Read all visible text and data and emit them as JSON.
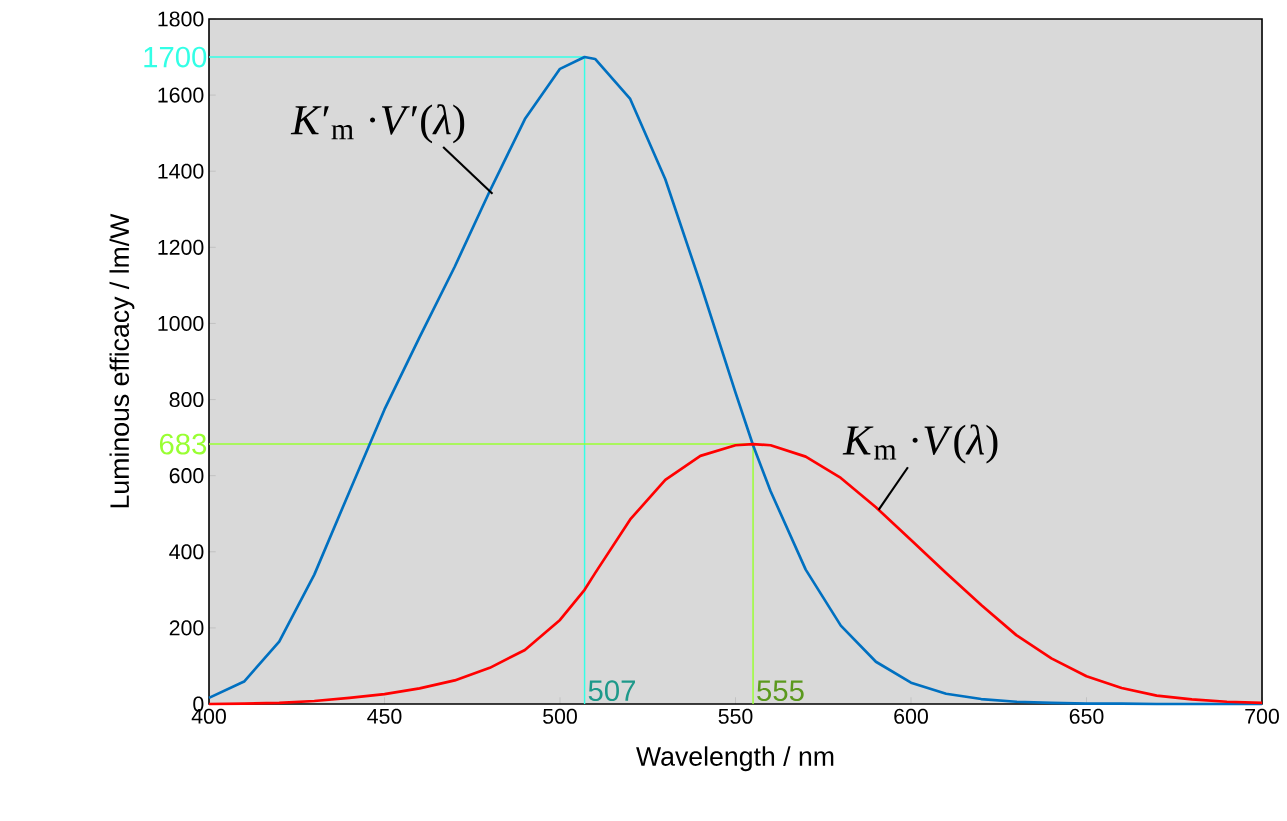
{
  "chart_data": {
    "type": "line",
    "xlabel": "Wavelength / nm",
    "ylabel": "Luminous efficacy / lm/W",
    "x": [
      400,
      410,
      420,
      430,
      440,
      450,
      460,
      470,
      480,
      490,
      500,
      507,
      510,
      520,
      530,
      540,
      550,
      555,
      560,
      570,
      580,
      590,
      600,
      610,
      620,
      630,
      640,
      650,
      660,
      670,
      680,
      690,
      700
    ],
    "series": [
      {
        "color": "#0070c0",
        "values": [
          16,
          59,
          164,
          340,
          558,
          774,
          964,
          1149,
          1348,
          1537,
          1669,
          1700,
          1695,
          1590,
          1379,
          1105,
          818,
          680,
          559,
          353,
          206,
          111,
          56,
          27,
          13,
          6,
          3,
          1,
          1,
          0,
          0,
          0,
          0
        ]
      },
      {
        "color": "#ff0000",
        "values": [
          0,
          1,
          3,
          8,
          16,
          26,
          41,
          62,
          95,
          142,
          221,
          300,
          344,
          485,
          589,
          652,
          680,
          683,
          680,
          650,
          594,
          517,
          431,
          344,
          260,
          181,
          120,
          73,
          42,
          22,
          12,
          6,
          3
        ]
      }
    ],
    "xlim": [
      400,
      700
    ],
    "ylim": [
      0,
      1800
    ],
    "xticks": [
      400,
      450,
      500,
      550,
      600,
      650,
      700
    ],
    "yticks": [
      0,
      200,
      400,
      600,
      800,
      1000,
      1200,
      1400,
      1600,
      1800
    ],
    "ref_lines": [
      {
        "axis": "y",
        "value": 1700,
        "label": "1700",
        "color": "#33ffe6"
      },
      {
        "axis": "x",
        "value": 507,
        "label": "507",
        "color": "#33ffe6"
      },
      {
        "axis": "y",
        "value": 683,
        "label": "683",
        "color": "#99ff33"
      },
      {
        "axis": "x",
        "value": 555,
        "label": "555",
        "color": "#99ff33"
      }
    ],
    "annotations": [
      {
        "text": "*K*′$_{m}$ ·*V*′(*λ*)",
        "x": 480,
        "y": 1348
      },
      {
        "text": "*K*$_{m}$ ·*V*(*λ*)",
        "x": 590,
        "y": 517
      }
    ]
  }
}
